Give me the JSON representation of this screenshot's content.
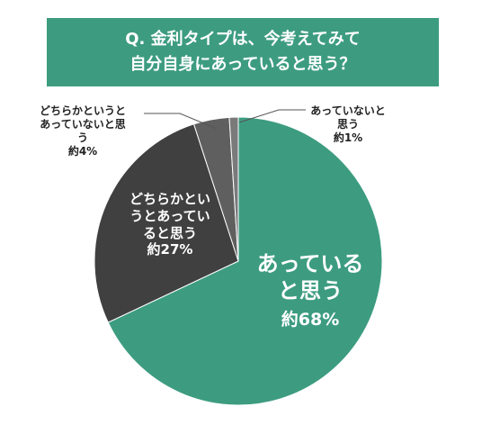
{
  "chart_data": {
    "type": "pie",
    "title": [
      "Q. 金利タイプは、今考えてみて",
      "自分自身にあっていると思う？"
    ],
    "categories": [
      "あっていると思う",
      "どちらかというとあっていると思う",
      "どちらかというとあっていないと思う",
      "あっていないと思う"
    ],
    "values": [
      68,
      27,
      4,
      1
    ],
    "value_labels": [
      "約68%",
      "約27%",
      "約4%",
      "約1%"
    ],
    "colors": [
      "#3d9c80",
      "#404040",
      "#5f5f5f",
      "#7a7a7a"
    ]
  }
}
